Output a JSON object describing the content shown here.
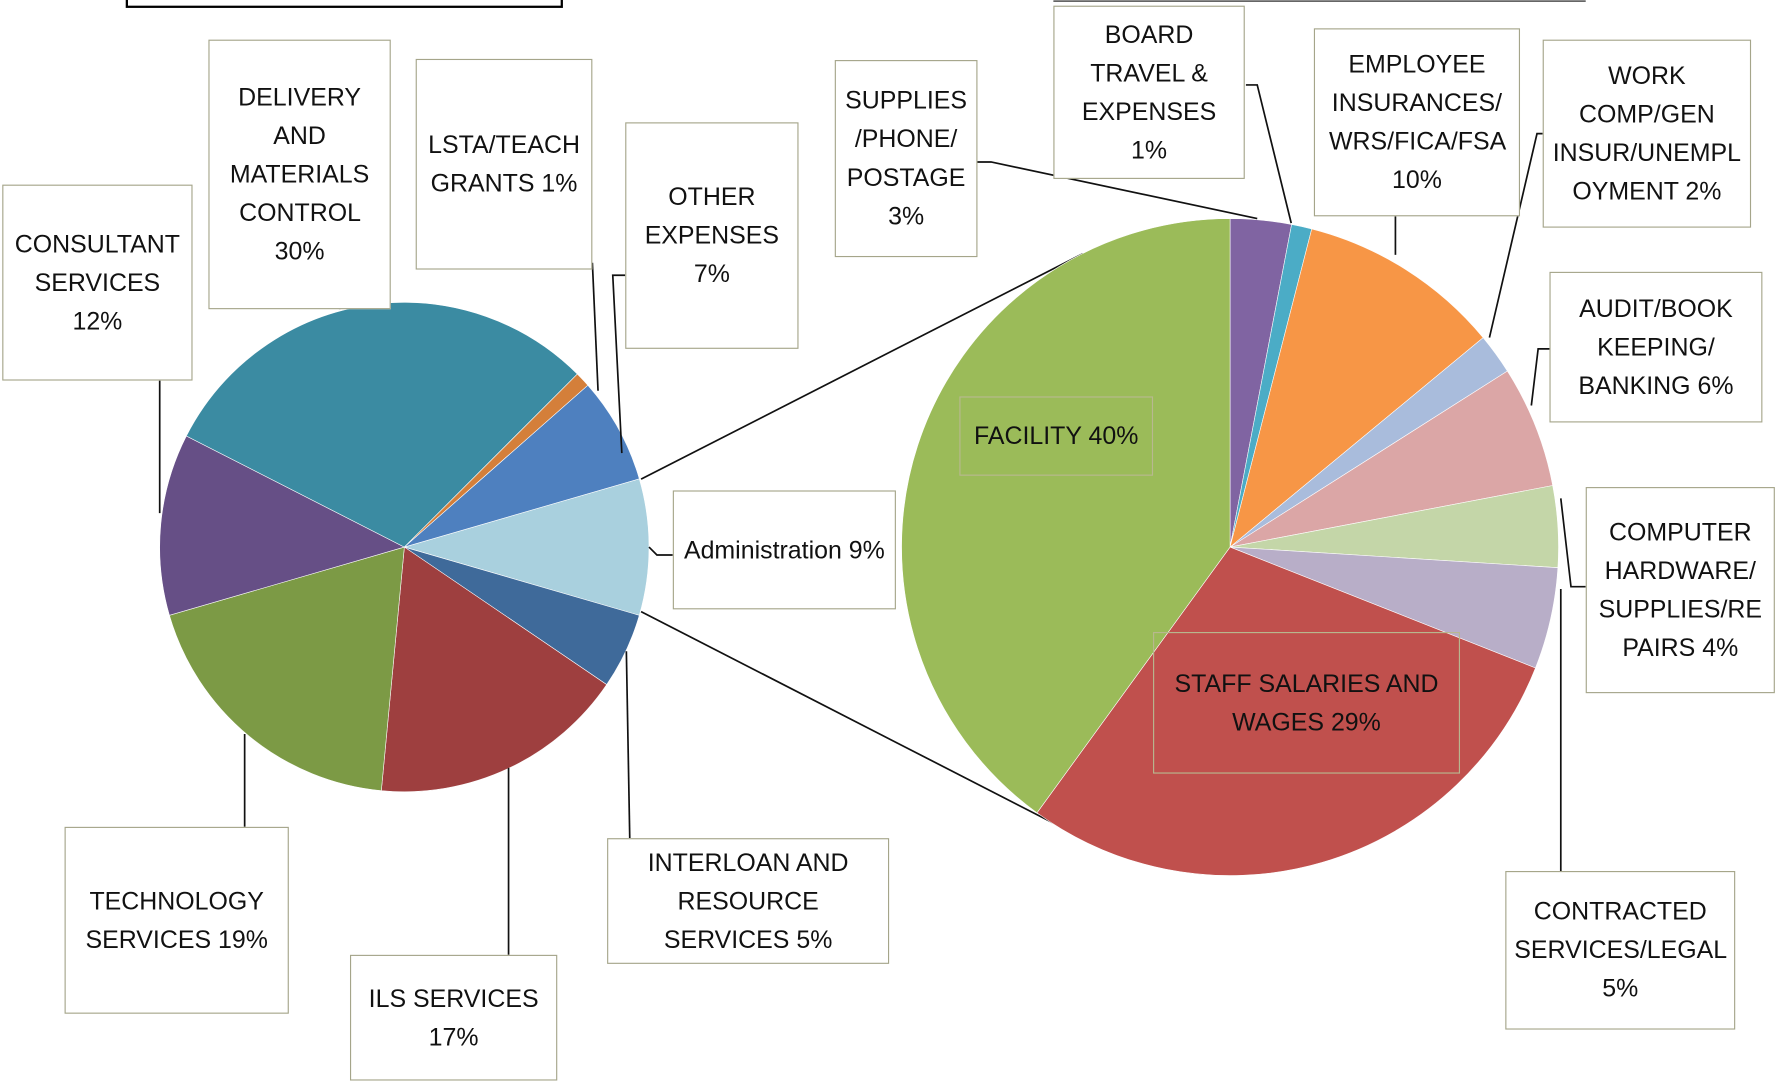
{
  "chart_data": [
    {
      "type": "pie",
      "categories": [
        "Administration",
        "INTERLOAN AND RESOURCE SERVICES",
        "ILS SERVICES",
        "TECHNOLOGY SERVICES",
        "CONSULTANT SERVICES",
        "DELIVERY AND MATERIALS CONTROL",
        "LSTA/TEACH GRANTS",
        "OTHER EXPENSES"
      ],
      "values": [
        9,
        5,
        17,
        19,
        12,
        30,
        1,
        7
      ],
      "value_labels": [
        "9%",
        "5%",
        "17%",
        "19%",
        "12%",
        "30%",
        "1%",
        "7%"
      ],
      "colors": [
        "#a9d0de",
        "#3f6a9a",
        "#9e3f3f",
        "#7c9a45",
        "#664f86",
        "#3b8ba2",
        "#d47f3a",
        "#4e80bf"
      ]
    },
    {
      "type": "pie",
      "categories": [
        "SUPPLIES /PHONE/ POSTAGE",
        "BOARD TRAVEL & EXPENSES",
        "EMPLOYEE INSURANCES/ WRS/FICA/FSA",
        "WORK COMP/GEN INSUR/UNEMPLOYMENT",
        "AUDIT/BOOK KEEPING/ BANKING",
        "COMPUTER HARDWARE/ SUPPLIES/REPAIRS",
        "CONTRACTED SERVICES/LEGAL",
        "STAFF SALARIES AND WAGES",
        "FACILITY"
      ],
      "values": [
        3,
        1,
        10,
        2,
        6,
        4,
        5,
        29,
        40
      ],
      "value_labels": [
        "3%",
        "1%",
        "10%",
        "2%",
        "6%",
        "4%",
        "5%",
        "29%",
        "40%"
      ],
      "colors": [
        "#8064a2",
        "#4bacc6",
        "#f79646",
        "#a9bcdc",
        "#dba6a6",
        "#c4d6a8",
        "#b8aec8",
        "#c0504d",
        "#9bbb59"
      ]
    }
  ]
}
